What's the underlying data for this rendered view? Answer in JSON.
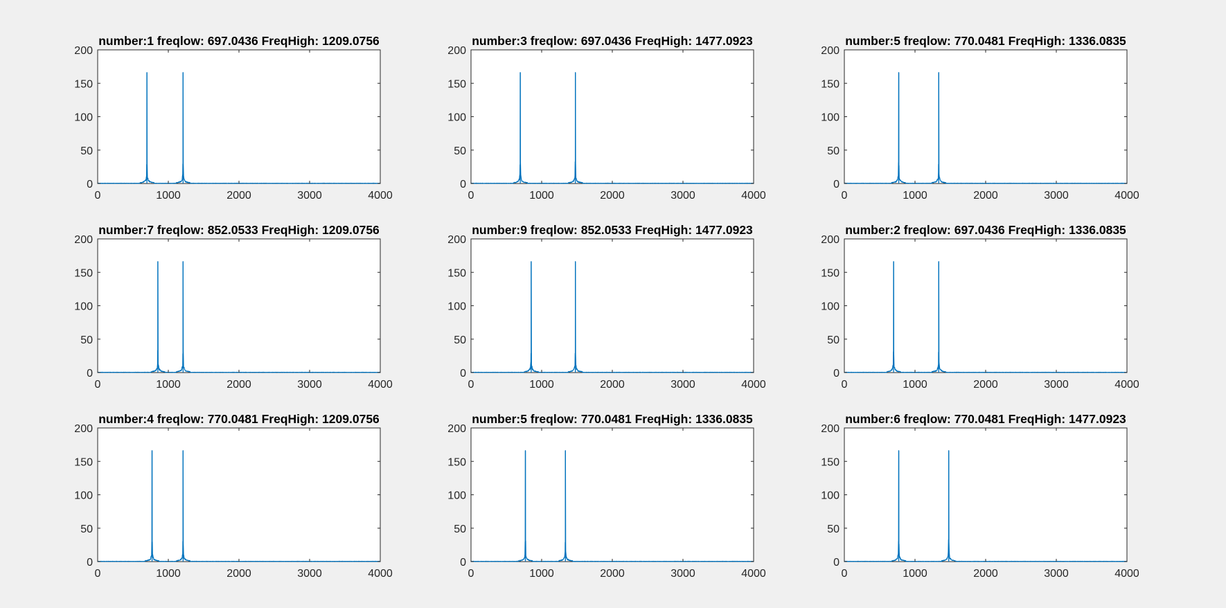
{
  "colors": {
    "background": "#f0f0f0",
    "axes": "#ffffff",
    "line": "#0072bd",
    "axis_color": "#262626"
  },
  "chart_data": [
    {
      "type": "line",
      "title": "number:1 freqlow: 697.0436 FreqHigh: 1209.0756",
      "peaks": [
        {
          "x": 697.0436,
          "y": 166
        },
        {
          "x": 1209.0756,
          "y": 166
        }
      ],
      "xlim": [
        0,
        4000
      ],
      "ylim": [
        0,
        200
      ],
      "xticks": [
        0,
        1000,
        2000,
        3000,
        4000
      ],
      "yticks": [
        0,
        50,
        100,
        150,
        200
      ],
      "grid": false
    },
    {
      "type": "line",
      "title": "number:3 freqlow: 697.0436 FreqHigh: 1477.0923",
      "peaks": [
        {
          "x": 697.0436,
          "y": 166
        },
        {
          "x": 1477.0923,
          "y": 166
        }
      ],
      "xlim": [
        0,
        4000
      ],
      "ylim": [
        0,
        200
      ],
      "xticks": [
        0,
        1000,
        2000,
        3000,
        4000
      ],
      "yticks": [
        0,
        50,
        100,
        150,
        200
      ],
      "grid": false
    },
    {
      "type": "line",
      "title": "number:5 freqlow: 770.0481 FreqHigh: 1336.0835",
      "peaks": [
        {
          "x": 770.0481,
          "y": 166
        },
        {
          "x": 1336.0835,
          "y": 166
        }
      ],
      "xlim": [
        0,
        4000
      ],
      "ylim": [
        0,
        200
      ],
      "xticks": [
        0,
        1000,
        2000,
        3000,
        4000
      ],
      "yticks": [
        0,
        50,
        100,
        150,
        200
      ],
      "grid": false
    },
    {
      "type": "line",
      "title": "number:7 freqlow: 852.0533 FreqHigh: 1209.0756",
      "peaks": [
        {
          "x": 852.0533,
          "y": 166
        },
        {
          "x": 1209.0756,
          "y": 166
        }
      ],
      "xlim": [
        0,
        4000
      ],
      "ylim": [
        0,
        200
      ],
      "xticks": [
        0,
        1000,
        2000,
        3000,
        4000
      ],
      "yticks": [
        0,
        50,
        100,
        150,
        200
      ],
      "grid": false
    },
    {
      "type": "line",
      "title": "number:9 freqlow: 852.0533 FreqHigh: 1477.0923",
      "peaks": [
        {
          "x": 852.0533,
          "y": 166
        },
        {
          "x": 1477.0923,
          "y": 166
        }
      ],
      "xlim": [
        0,
        4000
      ],
      "ylim": [
        0,
        200
      ],
      "xticks": [
        0,
        1000,
        2000,
        3000,
        4000
      ],
      "yticks": [
        0,
        50,
        100,
        150,
        200
      ],
      "grid": false
    },
    {
      "type": "line",
      "title": "number:2 freqlow: 697.0436 FreqHigh: 1336.0835",
      "peaks": [
        {
          "x": 697.0436,
          "y": 166
        },
        {
          "x": 1336.0835,
          "y": 166
        }
      ],
      "xlim": [
        0,
        4000
      ],
      "ylim": [
        0,
        200
      ],
      "xticks": [
        0,
        1000,
        2000,
        3000,
        4000
      ],
      "yticks": [
        0,
        50,
        100,
        150,
        200
      ],
      "grid": false
    },
    {
      "type": "line",
      "title": "number:4 freqlow: 770.0481 FreqHigh: 1209.0756",
      "peaks": [
        {
          "x": 770.0481,
          "y": 166
        },
        {
          "x": 1209.0756,
          "y": 166
        }
      ],
      "xlim": [
        0,
        4000
      ],
      "ylim": [
        0,
        200
      ],
      "xticks": [
        0,
        1000,
        2000,
        3000,
        4000
      ],
      "yticks": [
        0,
        50,
        100,
        150,
        200
      ],
      "grid": false
    },
    {
      "type": "line",
      "title": "number:5 freqlow: 770.0481 FreqHigh: 1336.0835",
      "peaks": [
        {
          "x": 770.0481,
          "y": 166
        },
        {
          "x": 1336.0835,
          "y": 166
        }
      ],
      "xlim": [
        0,
        4000
      ],
      "ylim": [
        0,
        200
      ],
      "xticks": [
        0,
        1000,
        2000,
        3000,
        4000
      ],
      "yticks": [
        0,
        50,
        100,
        150,
        200
      ],
      "grid": false
    },
    {
      "type": "line",
      "title": "number:6 freqlow: 770.0481 FreqHigh: 1477.0923",
      "peaks": [
        {
          "x": 770.0481,
          "y": 166
        },
        {
          "x": 1477.0923,
          "y": 166
        }
      ],
      "xlim": [
        0,
        4000
      ],
      "ylim": [
        0,
        200
      ],
      "xticks": [
        0,
        1000,
        2000,
        3000,
        4000
      ],
      "yticks": [
        0,
        50,
        100,
        150,
        200
      ],
      "grid": false
    }
  ]
}
